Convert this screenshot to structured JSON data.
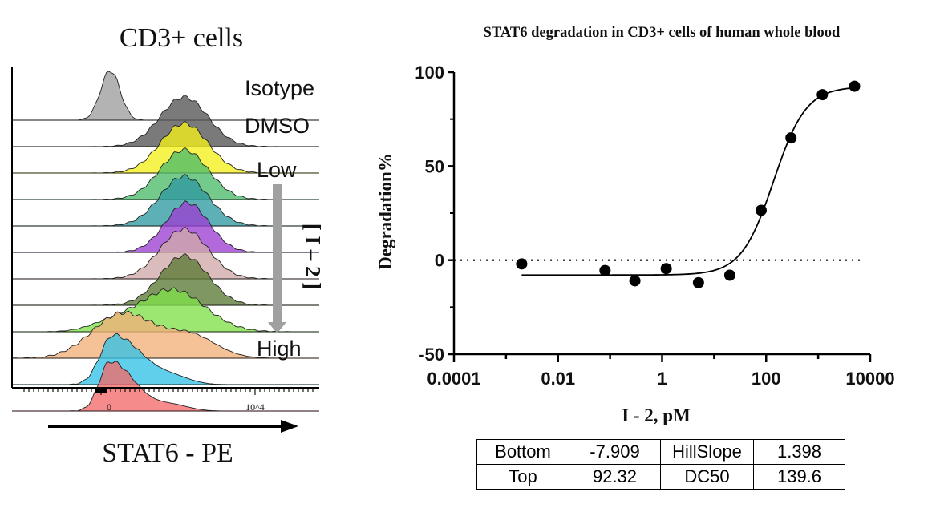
{
  "chart_data": [
    {
      "type": "histogram-overlay",
      "title": "CD3+ cells",
      "xlabel": "STAT6 - PE",
      "x_ticks": [
        "0",
        "10^4"
      ],
      "gradient_label": "[ I – 2 ]",
      "gradient_low": "Low",
      "gradient_high": "High",
      "tracks": [
        {
          "label": "Isotype",
          "color": "#9e9e9e",
          "peak": 0.32,
          "width": 0.045,
          "shape": "narrow"
        },
        {
          "label": "DMSO",
          "color": "#555555",
          "peak": 0.56,
          "width": 0.11,
          "shape": "normal"
        },
        {
          "label": "",
          "color": "#f2ef1a",
          "peak": 0.56,
          "width": 0.11,
          "shape": "normal"
        },
        {
          "label": "",
          "color": "#4dbb6a",
          "peak": 0.56,
          "width": 0.11,
          "shape": "normal"
        },
        {
          "label": "",
          "color": "#2f9aa0",
          "peak": 0.56,
          "width": 0.11,
          "shape": "normal"
        },
        {
          "label": "",
          "color": "#9b3fd1",
          "peak": 0.57,
          "width": 0.1,
          "shape": "normal"
        },
        {
          "label": "",
          "color": "#cfa9a9",
          "peak": 0.56,
          "width": 0.11,
          "shape": "normal"
        },
        {
          "label": "",
          "color": "#5b7a35",
          "peak": 0.56,
          "width": 0.11,
          "shape": "normal"
        },
        {
          "label": "",
          "color": "#7fe04a",
          "peak": 0.52,
          "width": 0.15,
          "shape": "broad"
        },
        {
          "label": "",
          "color": "#f2b07a",
          "peak": 0.36,
          "width": 0.14,
          "shape": "broad-left"
        },
        {
          "label": "",
          "color": "#33c2e6",
          "peak": 0.33,
          "width": 0.06,
          "shape": "skewed"
        },
        {
          "label": "",
          "color": "#f26a6a",
          "peak": 0.32,
          "width": 0.05,
          "shape": "skewed"
        }
      ]
    },
    {
      "type": "scatter-with-fit",
      "title": "STAT6  degradation in CD3+ cells of human whole blood",
      "xlabel": "I - 2, pM",
      "ylabel": "Degradation%",
      "xscale": "log",
      "xlim": [
        0.0001,
        10000
      ],
      "ylim": [
        -50,
        100
      ],
      "x_ticks": [
        "0.0001",
        "0.01",
        "1",
        "100",
        "10000"
      ],
      "y_ticks": [
        "-50",
        "0",
        "50",
        "100"
      ],
      "reference_line": {
        "y": 0,
        "style": "dotted"
      },
      "points": [
        {
          "x": 0.002,
          "y": -2
        },
        {
          "x": 0.08,
          "y": -5.5
        },
        {
          "x": 0.3,
          "y": -11
        },
        {
          "x": 1.2,
          "y": -4.5
        },
        {
          "x": 5,
          "y": -12
        },
        {
          "x": 20,
          "y": -8
        },
        {
          "x": 80,
          "y": 26.5
        },
        {
          "x": 300,
          "y": 65
        },
        {
          "x": 1200,
          "y": 88
        },
        {
          "x": 5000,
          "y": 92.5
        }
      ],
      "fit": {
        "model": "four-parameter logistic",
        "bottom": -7.909,
        "top": 92.32,
        "hillslope": 1.398,
        "dc50": 139.6
      }
    }
  ],
  "params_table": {
    "rows": [
      [
        "Bottom",
        "-7.909",
        "HillSlope",
        "1.398"
      ],
      [
        "Top",
        "92.32",
        "DC50",
        "139.6"
      ]
    ]
  }
}
